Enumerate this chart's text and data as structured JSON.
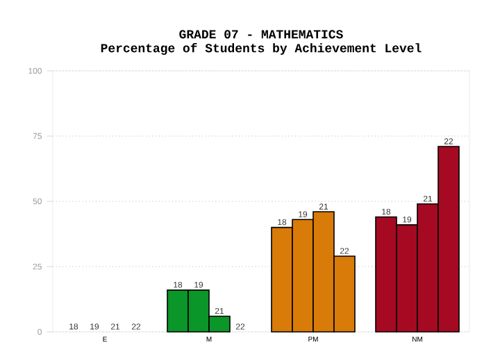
{
  "chart_data": {
    "type": "bar",
    "title": "GRADE 07 - MATHEMATICS",
    "subtitle": "Percentage of Students by Achievement Level",
    "categories": [
      "E",
      "M",
      "PM",
      "NM"
    ],
    "series": [
      {
        "name": "18",
        "colors": [
          "#0a9628",
          "#0a9628",
          "#d97b08",
          "#a50a22"
        ],
        "values": [
          0,
          16,
          40,
          44
        ]
      },
      {
        "name": "19",
        "colors": [
          "#0a9628",
          "#0a9628",
          "#d97b08",
          "#a50a22"
        ],
        "values": [
          0,
          16,
          43,
          41
        ]
      },
      {
        "name": "21",
        "colors": [
          "#0a9628",
          "#0a9628",
          "#d97b08",
          "#a50a22"
        ],
        "values": [
          0,
          6,
          46,
          49
        ]
      },
      {
        "name": "22",
        "colors": [
          "#0a9628",
          "#0a9628",
          "#d97b08",
          "#a50a22"
        ],
        "values": [
          0,
          0,
          29,
          71
        ]
      }
    ],
    "ylim": [
      0,
      100
    ],
    "yticks": [
      0,
      25,
      50,
      75,
      100
    ],
    "grid": "y"
  }
}
